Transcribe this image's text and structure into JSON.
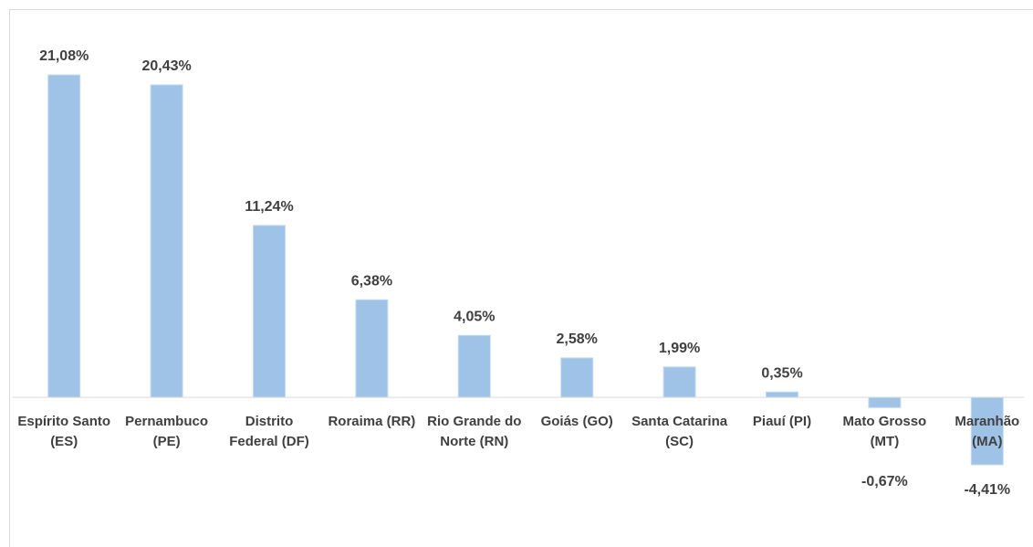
{
  "chart_data": {
    "type": "bar",
    "categories": [
      "Espírito Santo (ES)",
      "Pernambuco (PE)",
      "Distrito Federal (DF)",
      "Roraima (RR)",
      "Rio Grande do Norte (RN)",
      "Goiás (GO)",
      "Santa Catarina (SC)",
      "Piauí (PI)",
      "Mato Grosso (MT)",
      "Maranhão (MA)"
    ],
    "values": [
      21.08,
      20.43,
      11.24,
      6.38,
      4.05,
      2.58,
      1.99,
      0.35,
      -0.67,
      -4.41
    ],
    "value_labels": [
      "21,08%",
      "20,43%",
      "11,24%",
      "6,38%",
      "4,05%",
      "2,58%",
      "1,99%",
      "0,35%",
      "-0,67%",
      "-4,41%"
    ],
    "color": "#9fc3e7"
  }
}
